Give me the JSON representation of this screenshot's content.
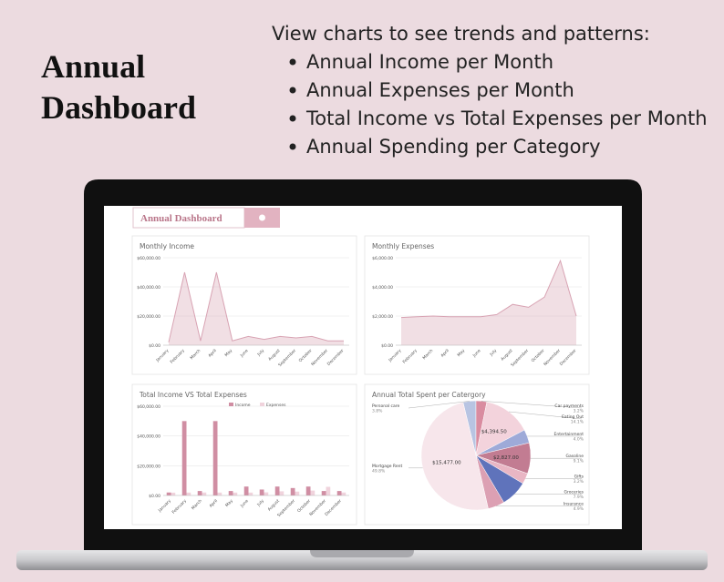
{
  "header": {
    "title_lines": [
      "Annual",
      "Dashboard"
    ],
    "intro": "View charts to see trends and patterns:",
    "bullets": [
      "Annual Income per Month",
      "Annual Expenses per Month",
      "Total Income vs Total Expenses per Month",
      "Annual Spending per Category"
    ]
  },
  "dashboard": {
    "title": "Annual Dashboard"
  },
  "chart_data": [
    {
      "type": "area",
      "title": "Monthly Income",
      "categories": [
        "January",
        "February",
        "March",
        "April",
        "May",
        "June",
        "July",
        "August",
        "September",
        "October",
        "November",
        "December"
      ],
      "values": [
        2000,
        50000,
        3000,
        50000,
        3000,
        6000,
        4000,
        6000,
        5000,
        6000,
        3000,
        3000
      ],
      "color": "#d8a3b3",
      "ylim": [
        0,
        60000
      ],
      "yticks": [
        {
          "value": 0,
          "label": "$0.00"
        },
        {
          "value": 20000,
          "label": "$20,000.00"
        },
        {
          "value": 40000,
          "label": "$40,000.00"
        },
        {
          "value": 60000,
          "label": "$60,000.00"
        }
      ],
      "grid": true
    },
    {
      "type": "area",
      "title": "Monthly Expenses",
      "categories": [
        "January",
        "February",
        "March",
        "April",
        "May",
        "June",
        "July",
        "August",
        "September",
        "October",
        "November",
        "December"
      ],
      "values": [
        1900,
        1950,
        2000,
        1950,
        1950,
        1950,
        2100,
        2800,
        2600,
        3300,
        5800,
        2000
      ],
      "color": "#d8a3b3",
      "ylim": [
        0,
        6000
      ],
      "yticks": [
        {
          "value": 0,
          "label": "$0.00"
        },
        {
          "value": 2000,
          "label": "$2,000.00"
        },
        {
          "value": 4000,
          "label": "$4,000.00"
        },
        {
          "value": 6000,
          "label": "$6,000.00"
        }
      ],
      "grid": true
    },
    {
      "type": "bar",
      "title": "Total Income VS Total Expenses",
      "categories": [
        "January",
        "February",
        "March",
        "April",
        "May",
        "June",
        "July",
        "August",
        "September",
        "October",
        "November",
        "December"
      ],
      "series": [
        {
          "name": "Income",
          "color": "#d08ea3",
          "values": [
            2000,
            50000,
            3000,
            50000,
            3000,
            6000,
            4000,
            6000,
            5000,
            6000,
            3000,
            3000
          ]
        },
        {
          "name": "Expenses",
          "color": "#f0d3dc",
          "values": [
            1900,
            1950,
            2000,
            1950,
            1950,
            1950,
            2100,
            2800,
            2600,
            3300,
            5800,
            2000
          ]
        }
      ],
      "ylim": [
        0,
        60000
      ],
      "yticks": [
        {
          "value": 0,
          "label": "$0.00"
        },
        {
          "value": 20000,
          "label": "$20,000.00"
        },
        {
          "value": 40000,
          "label": "$40,000.00"
        },
        {
          "value": 60000,
          "label": "$60,000.00"
        }
      ],
      "grid": true,
      "legend": "top"
    },
    {
      "type": "pie",
      "title": "Annual Total Spent per Catergory",
      "categories": [
        "Personal care",
        "Car payments",
        "Eating Out",
        "Entertainment",
        "Gasoline",
        "Gifts",
        "Groceries",
        "Insurance",
        "Mortgage Rent"
      ],
      "values": [
        3.8,
        3.2,
        14.1,
        4.0,
        9.1,
        3.2,
        7.9,
        4.9,
        49.8
      ],
      "value_labels": [
        "3.8%",
        "3.2%",
        "14.1%",
        "4.0%",
        "9.1%",
        "3.2%",
        "7.9%",
        "4.9%",
        "49.8%"
      ],
      "amounts": [
        null,
        null,
        4394.5,
        null,
        2827,
        null,
        null,
        null,
        15477
      ],
      "amount_labels": [
        null,
        null,
        "$4,394.50",
        null,
        "$2,827.00",
        null,
        null,
        null,
        "$15,477.00"
      ],
      "colors": [
        "#b8c4e2",
        "#d98ca0",
        "#f3d3dc",
        "#9eaad8",
        "#c27c92",
        "#e9b6c4",
        "#5f73bb",
        "#dca0b3",
        "#f7e6eb"
      ]
    }
  ]
}
